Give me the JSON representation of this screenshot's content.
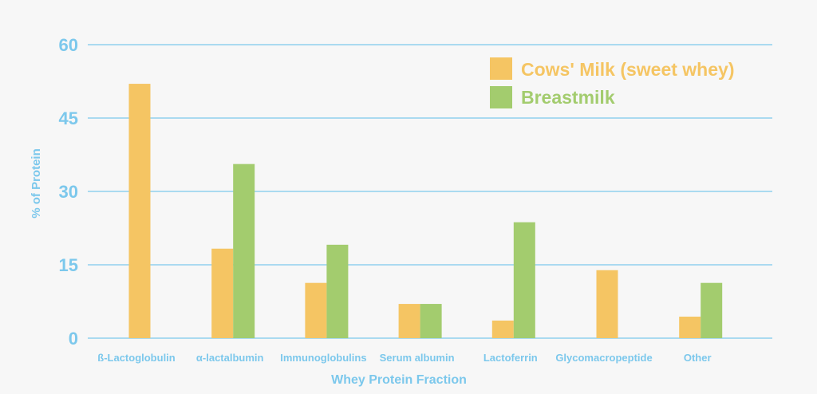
{
  "chart_data": {
    "type": "bar",
    "title": "",
    "xlabel": "Whey Protein Fraction",
    "ylabel": "% of Protein",
    "ylim": [
      0,
      60
    ],
    "yticks": [
      0,
      15,
      30,
      45,
      60
    ],
    "grid": true,
    "legend_position": "top-right",
    "categories": [
      "ß-Lactoglobulin",
      "α-lactalbumin",
      "Immunoglobulins",
      "Serum albumin",
      "Lactoferrin",
      "Glycomacropeptide",
      "Other"
    ],
    "series": [
      {
        "name": "Cows' Milk (sweet whey)",
        "color": "#f5c563",
        "values": [
          52,
          18.3,
          11.3,
          7,
          3.6,
          13.9,
          4.4
        ]
      },
      {
        "name": "Breastmilk",
        "color": "#a3cc6e",
        "values": [
          null,
          35.6,
          19.1,
          7,
          23.7,
          null,
          11.3
        ]
      }
    ]
  },
  "colors": {
    "axis": "#7cc8ec",
    "background": "#f7f7f7"
  }
}
